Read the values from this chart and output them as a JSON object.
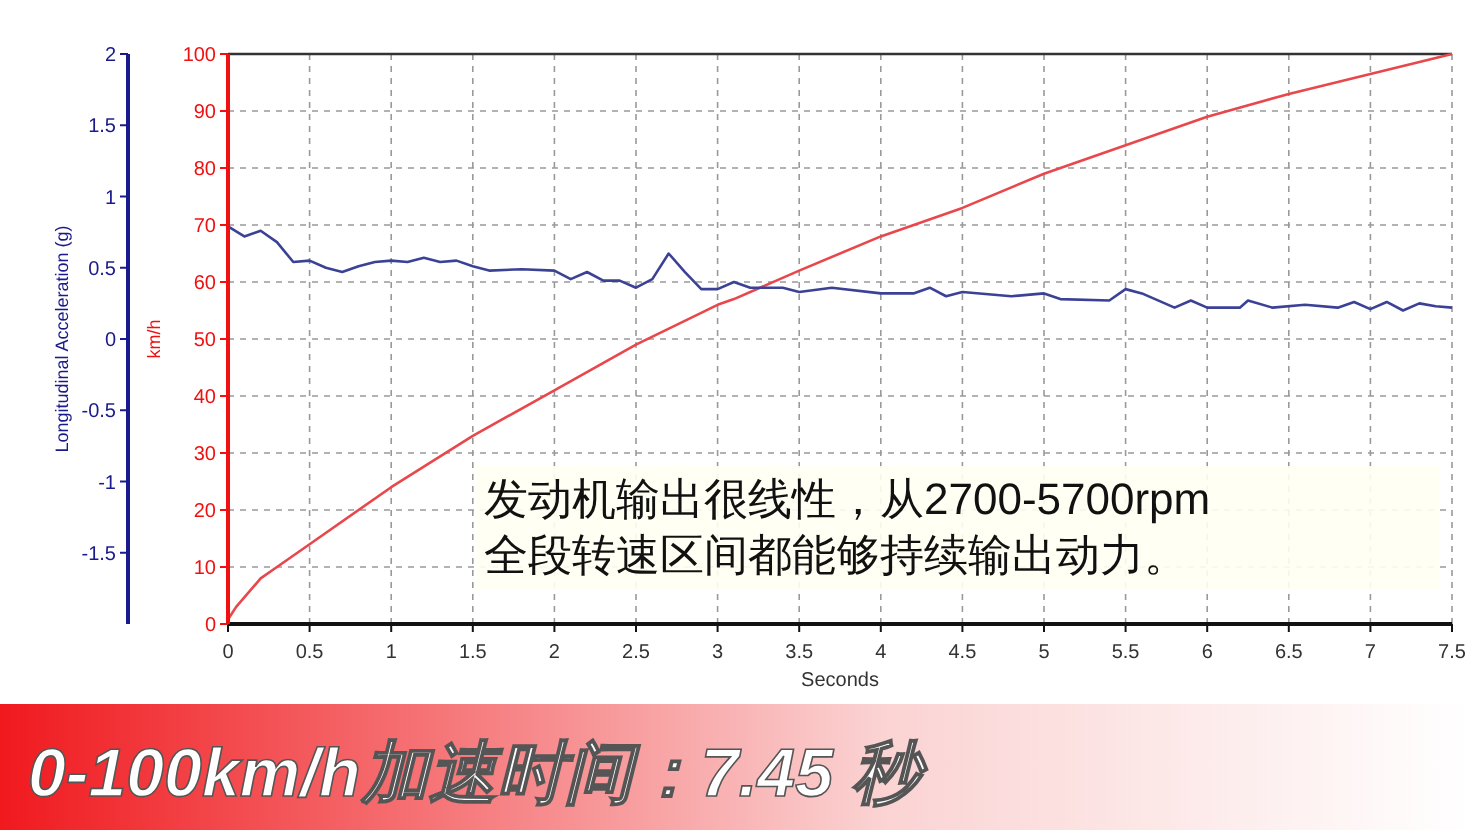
{
  "chart_data": {
    "type": "line",
    "title": "0-100km/h加速时间：7.45 秒",
    "xlabel": "Seconds",
    "ylabel": "km/h",
    "y2label": "Longitudinal Acceleration (g)",
    "annotations": [
      "发动机输出很线性，从2700-5700rpm",
      "全段转速区间都能够持续输出动力。"
    ],
    "xlim": [
      0,
      7.5
    ],
    "xticks": [
      0,
      0.5,
      1,
      1.5,
      2,
      2.5,
      3,
      3.5,
      4,
      4.5,
      5,
      5.5,
      6,
      6.5,
      7,
      7.5
    ],
    "ylim": [
      0,
      100
    ],
    "yticks": [
      0,
      10,
      20,
      30,
      40,
      50,
      60,
      70,
      80,
      90,
      100
    ],
    "y2lim": [
      -2,
      2
    ],
    "y2ticks": [
      -1.5,
      -1,
      -0.5,
      0,
      0.5,
      1,
      1.5,
      2
    ],
    "grid": true,
    "series": [
      {
        "color": "#e8474c",
        "x": [
          0,
          0.05,
          0.2,
          0.3,
          0.5,
          1,
          1.5,
          2,
          2.5,
          3,
          3.1,
          3.5,
          4,
          4.5,
          5,
          5.5,
          6,
          6.5,
          7,
          7.5
        ],
        "values": [
          0.8,
          3,
          8,
          10,
          14,
          24,
          33,
          41,
          49,
          56,
          57,
          62,
          68,
          73,
          79,
          84,
          89,
          93,
          96.5,
          100
        ]
      },
      {
        "color": "#3b4296",
        "axis": "y2",
        "x": [
          0,
          0.1,
          0.2,
          0.3,
          0.4,
          0.5,
          0.6,
          0.7,
          0.8,
          0.9,
          1,
          1.1,
          1.2,
          1.3,
          1.4,
          1.5,
          1.6,
          1.8,
          2,
          2.1,
          2.2,
          2.3,
          2.4,
          2.5,
          2.6,
          2.7,
          2.8,
          2.9,
          3,
          3.1,
          3.2,
          3.4,
          3.5,
          3.7,
          4,
          4.2,
          4.3,
          4.4,
          4.5,
          4.8,
          5,
          5.1,
          5.4,
          5.5,
          5.6,
          5.8,
          5.9,
          6,
          6.2,
          6.25,
          6.4,
          6.6,
          6.8,
          6.9,
          7,
          7.1,
          7.2,
          7.3,
          7.4,
          7.5
        ],
        "values": [
          0.79,
          0.72,
          0.76,
          0.68,
          0.54,
          0.55,
          0.5,
          0.47,
          0.51,
          0.54,
          0.55,
          0.54,
          0.57,
          0.54,
          0.55,
          0.51,
          0.48,
          0.49,
          0.48,
          0.42,
          0.47,
          0.41,
          0.41,
          0.36,
          0.42,
          0.6,
          0.47,
          0.35,
          0.35,
          0.4,
          0.36,
          0.36,
          0.33,
          0.36,
          0.32,
          0.32,
          0.36,
          0.3,
          0.33,
          0.3,
          0.32,
          0.28,
          0.27,
          0.35,
          0.32,
          0.22,
          0.27,
          0.22,
          0.22,
          0.27,
          0.22,
          0.24,
          0.22,
          0.26,
          0.21,
          0.26,
          0.2,
          0.25,
          0.23,
          0.22
        ]
      }
    ]
  }
}
